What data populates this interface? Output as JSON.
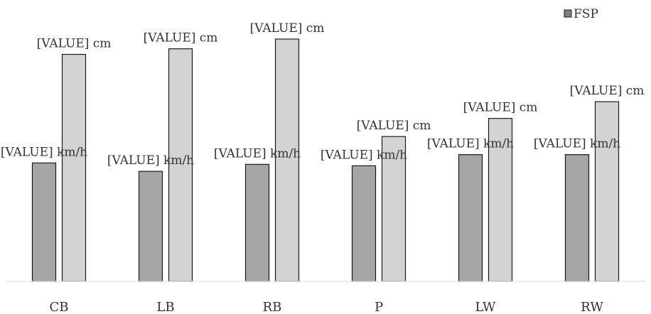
{
  "chart_data": {
    "type": "bar",
    "categories": [
      "CB",
      "LB",
      "RB",
      "P",
      "LW",
      "RW"
    ],
    "series": [
      {
        "name": "",
        "color": "#a6a6a6",
        "values": [
          170,
          158,
          168,
          166,
          182,
          182
        ],
        "labels": [
          "[VALUE] km/h",
          "[VALUE] km/h",
          "[VALUE] km/h",
          "[VALUE] km/h",
          "[VALUE] km/h",
          "[VALUE] km/h"
        ]
      },
      {
        "name": "FSP",
        "color": "#d3d3d3",
        "values": [
          326,
          334,
          348,
          208,
          234,
          258
        ],
        "labels": [
          "[VALUE] cm",
          "[VALUE] cm",
          "[VALUE] cm",
          "[VALUE] cm",
          "[VALUE] cm",
          "[VALUE] cm"
        ]
      }
    ],
    "ylim": [
      0,
      400
    ],
    "grid": false,
    "legend_position": "top-right",
    "title": "",
    "xlabel": "",
    "ylabel": ""
  }
}
